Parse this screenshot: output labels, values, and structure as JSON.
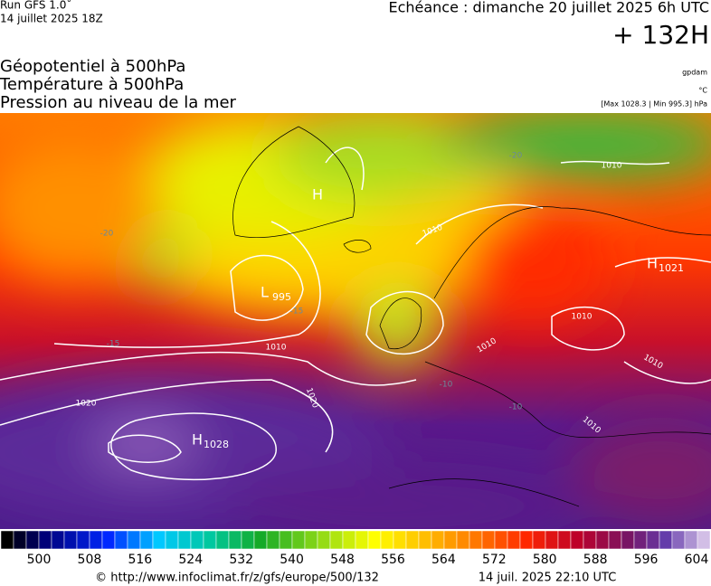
{
  "header": {
    "run": "Run GFS 1.0˚",
    "run_date": "14 juillet 2025 18Z",
    "valid": "Echéance : dimanche 20 juillet 2025 6h UTC",
    "lead": "+ 132H"
  },
  "titles": [
    "Géopotentiel à 500hPa",
    "Température à 500hPa",
    "Pression au niveau de la mer"
  ],
  "units": {
    "geopotential": "gpdam",
    "temperature": "°C",
    "pressure": "[Max 1028.3 | Min 995.3] hPa"
  },
  "map": {
    "pressure_centers": [
      {
        "letter": "H",
        "value": 1021
      },
      {
        "letter": "L",
        "value": 995
      },
      {
        "letter": "H",
        "value": 1028
      },
      {
        "letter": "H"
      }
    ],
    "isobar_labels": [
      1010,
      1020,
      1020,
      1010,
      1010,
      1010,
      1010,
      1010,
      1010
    ],
    "isotherm_labels": [
      -20,
      -20,
      -15,
      -15,
      -10,
      -10
    ]
  },
  "colorbar": {
    "labels": [
      500,
      508,
      516,
      524,
      532,
      540,
      548,
      556,
      564,
      572,
      580,
      588,
      596,
      604
    ]
  },
  "footer": {
    "source": "© http://www.infoclimat.fr/z/gfs/europe/500/132",
    "generated": "14 juil. 2025 22:10 UTC"
  }
}
